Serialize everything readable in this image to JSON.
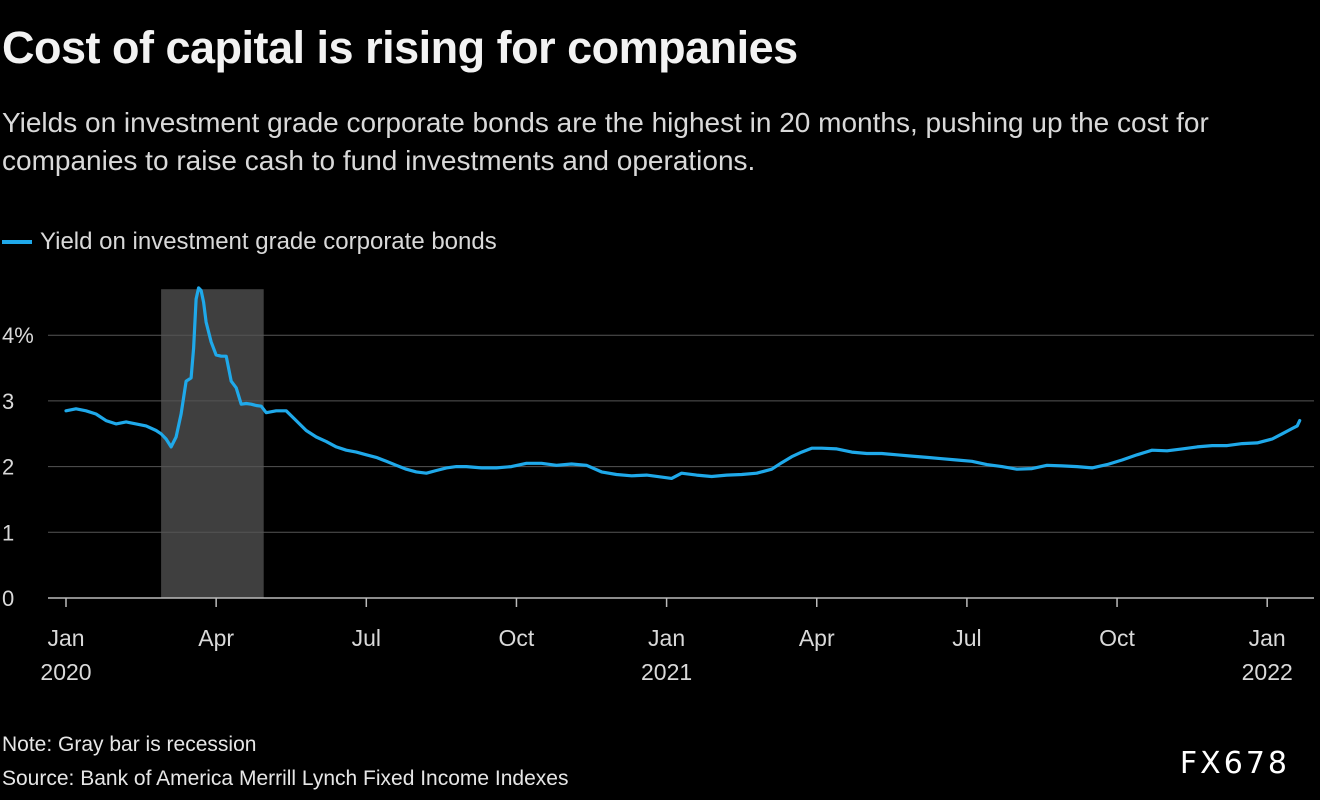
{
  "title": "Cost of capital is rising for companies",
  "subtitle": "Yields on investment grade corporate bonds are the highest in 20 months, pushing up the cost for companies to raise cash to fund investments and operations.",
  "legend_label": "Yield on investment grade corporate bonds",
  "note": "Note: Gray bar is recession",
  "source": "Source: Bank of America Merrill Lynch Fixed Income Indexes",
  "brand": "FX678",
  "colors": {
    "background": "#000000",
    "line": "#1fa9ea",
    "recession": "#3f3f3f",
    "grid": "#555555",
    "text": "#d9d9d9"
  },
  "chart_data": {
    "type": "line",
    "title": "Cost of capital is rising for companies",
    "ylabel": "",
    "xlabel": "",
    "ylim": [
      0,
      4.7
    ],
    "yticks": [
      0,
      1,
      2,
      3,
      4
    ],
    "ytick_labels": [
      "0",
      "1",
      "2",
      "3",
      "4%"
    ],
    "x_range_months": [
      -0.1,
      24.9
    ],
    "xticks": [
      {
        "month": 0,
        "label": "Jan",
        "year": "2020"
      },
      {
        "month": 3,
        "label": "Apr",
        "year": ""
      },
      {
        "month": 6,
        "label": "Jul",
        "year": ""
      },
      {
        "month": 9,
        "label": "Oct",
        "year": ""
      },
      {
        "month": 12,
        "label": "Jan",
        "year": "2021"
      },
      {
        "month": 15,
        "label": "Apr",
        "year": ""
      },
      {
        "month": 18,
        "label": "Jul",
        "year": ""
      },
      {
        "month": 21,
        "label": "Oct",
        "year": ""
      },
      {
        "month": 24,
        "label": "Jan",
        "year": "2022"
      }
    ],
    "shaded_regions": [
      {
        "label": "recession",
        "start_month": 1.9,
        "end_month": 3.95
      }
    ],
    "series": [
      {
        "name": "Yield on investment grade corporate bonds",
        "x_months": [
          0.0,
          0.2,
          0.4,
          0.6,
          0.8,
          1.0,
          1.2,
          1.4,
          1.6,
          1.8,
          1.9,
          2.0,
          2.1,
          2.2,
          2.3,
          2.4,
          2.5,
          2.55,
          2.6,
          2.65,
          2.7,
          2.75,
          2.8,
          2.9,
          3.0,
          3.1,
          3.2,
          3.3,
          3.4,
          3.5,
          3.6,
          3.7,
          3.8,
          3.9,
          4.0,
          4.2,
          4.4,
          4.6,
          4.8,
          5.0,
          5.2,
          5.4,
          5.6,
          5.8,
          6.0,
          6.2,
          6.4,
          6.6,
          6.8,
          7.0,
          7.2,
          7.4,
          7.6,
          7.8,
          8.0,
          8.3,
          8.6,
          8.9,
          9.2,
          9.5,
          9.8,
          10.1,
          10.4,
          10.7,
          11.0,
          11.3,
          11.6,
          11.9,
          12.1,
          12.3,
          12.6,
          12.9,
          13.2,
          13.5,
          13.8,
          14.1,
          14.3,
          14.5,
          14.7,
          14.9,
          15.1,
          15.4,
          15.7,
          16.0,
          16.3,
          16.6,
          16.9,
          17.2,
          17.5,
          17.8,
          18.1,
          18.4,
          18.7,
          19.0,
          19.3,
          19.6,
          19.9,
          20.2,
          20.5,
          20.8,
          21.1,
          21.4,
          21.7,
          22.0,
          22.3,
          22.6,
          22.9,
          23.2,
          23.5,
          23.8,
          24.1,
          24.3,
          24.5,
          24.6,
          24.65
        ],
        "values": [
          2.85,
          2.88,
          2.85,
          2.8,
          2.7,
          2.65,
          2.68,
          2.65,
          2.62,
          2.55,
          2.5,
          2.42,
          2.3,
          2.45,
          2.8,
          3.3,
          3.35,
          3.8,
          4.55,
          4.72,
          4.68,
          4.5,
          4.2,
          3.9,
          3.7,
          3.68,
          3.68,
          3.3,
          3.2,
          2.95,
          2.96,
          2.95,
          2.93,
          2.92,
          2.82,
          2.85,
          2.85,
          2.7,
          2.55,
          2.45,
          2.38,
          2.3,
          2.25,
          2.22,
          2.18,
          2.14,
          2.08,
          2.02,
          1.96,
          1.92,
          1.9,
          1.94,
          1.98,
          2.0,
          2.0,
          1.98,
          1.98,
          2.0,
          2.05,
          2.05,
          2.02,
          2.04,
          2.02,
          1.92,
          1.88,
          1.86,
          1.87,
          1.84,
          1.82,
          1.9,
          1.87,
          1.85,
          1.87,
          1.88,
          1.9,
          1.96,
          2.06,
          2.15,
          2.22,
          2.28,
          2.28,
          2.27,
          2.22,
          2.2,
          2.2,
          2.18,
          2.16,
          2.14,
          2.12,
          2.1,
          2.08,
          2.03,
          2.0,
          1.96,
          1.97,
          2.02,
          2.01,
          2.0,
          1.98,
          2.03,
          2.1,
          2.18,
          2.25,
          2.24,
          2.27,
          2.3,
          2.32,
          2.32,
          2.35,
          2.36,
          2.42,
          2.5,
          2.58,
          2.62,
          2.7
        ]
      }
    ]
  }
}
